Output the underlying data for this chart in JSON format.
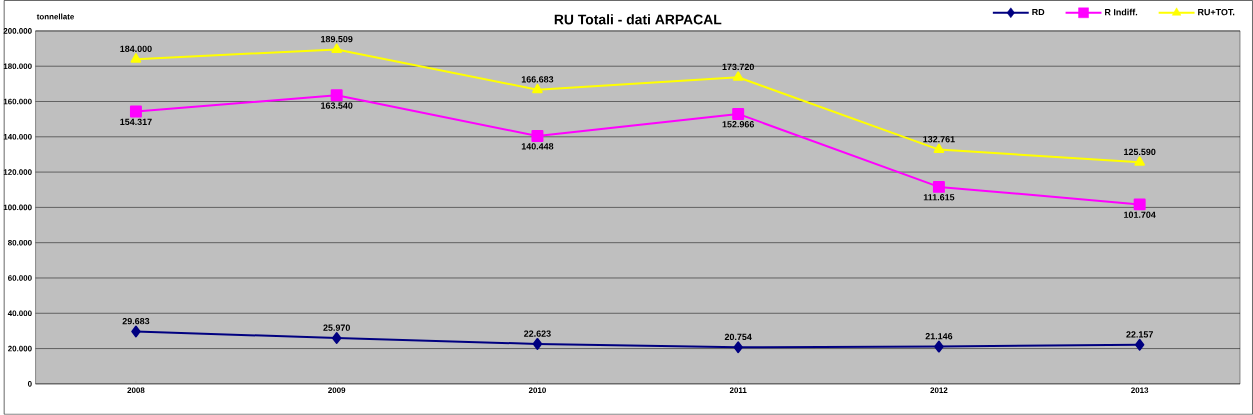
{
  "chart_data": {
    "type": "line",
    "title": "RU Totali - dati ARPACAL",
    "ylabel": "tonnellate",
    "categories": [
      "2008",
      "2009",
      "2010",
      "2011",
      "2012",
      "2013"
    ],
    "series": [
      {
        "name": "RD",
        "color": "#000080",
        "marker": "diamond",
        "values": [
          29683,
          25970,
          22623,
          20754,
          21146,
          22157
        ],
        "value_labels": [
          "29.683",
          "25.970",
          "22.623",
          "20.754",
          "21.146",
          "22.157"
        ]
      },
      {
        "name": "R Indiff.",
        "color": "#ff00ff",
        "marker": "square",
        "values": [
          154317,
          163540,
          140448,
          152966,
          111615,
          101704
        ],
        "value_labels": [
          "154.317",
          "163.540",
          "140.448",
          "152.966",
          "111.615",
          "101.704"
        ]
      },
      {
        "name": "RU+TOT.",
        "color": "#ffff00",
        "marker": "triangle",
        "values": [
          184000,
          189509,
          166683,
          173720,
          132761,
          125590
        ],
        "value_labels": [
          "184.000",
          "189.509",
          "166.683",
          "173.720",
          "132.761",
          "125.590"
        ]
      }
    ],
    "ylim": [
      0,
      200000
    ],
    "yticks": [
      {
        "value": 0,
        "label": "0"
      },
      {
        "value": 20000,
        "label": "20.000"
      },
      {
        "value": 40000,
        "label": "40.000"
      },
      {
        "value": 60000,
        "label": "60.000"
      },
      {
        "value": 80000,
        "label": "80.000"
      },
      {
        "value": 100000,
        "label": "100.000"
      },
      {
        "value": 120000,
        "label": "120.000"
      },
      {
        "value": 140000,
        "label": "140.000"
      },
      {
        "value": 160000,
        "label": "160.000"
      },
      {
        "value": 180000,
        "label": "180.000"
      },
      {
        "value": 200000,
        "label": "200.000"
      }
    ],
    "grid": "y",
    "legend": "top right",
    "line_style": "solid"
  }
}
